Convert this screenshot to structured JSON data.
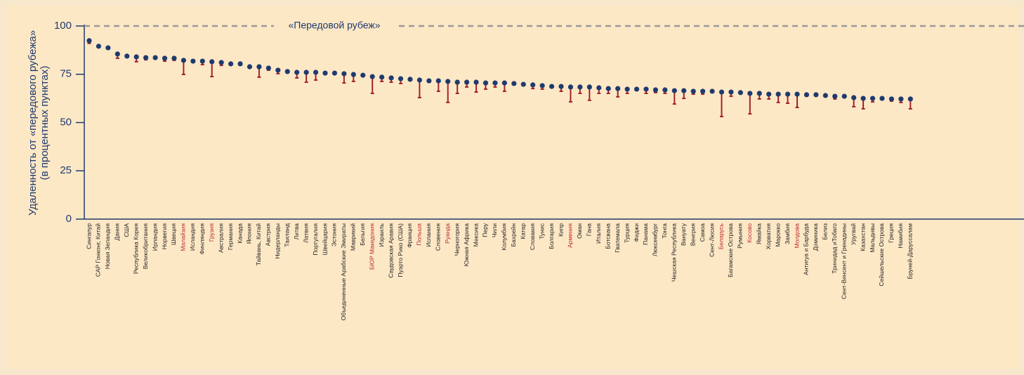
{
  "chart_data": {
    "type": "dot_range",
    "ylabel": [
      "Удаленность от «передового рубежа»",
      "(в процентных пунктах)"
    ],
    "annotation": "«Передовой рубеж»",
    "annotation_value": 100,
    "ylim": [
      0,
      100
    ],
    "yticks": [
      0,
      25,
      50,
      75,
      100
    ],
    "categories": [
      "Сингапур",
      "САР Гонконг, Китай",
      "Новая Зеландия",
      "Дания",
      "США",
      "Республика Корея",
      "Великобритания",
      "Ирландия",
      "Норвегия",
      "Швеция",
      "Малайзия",
      "Исландия",
      "Финляндия",
      "Грузия",
      "Австралия",
      "Германия",
      "Канада",
      "Япония",
      "Тайвань, Китай",
      "Австрия",
      "Нидерланды",
      "Таиланд",
      "Литва",
      "Латвия",
      "Португалия",
      "Швейцария",
      "Эстония",
      "Объединенные Арабские Эмираты",
      "Маврикий",
      "Бельгия",
      "БЮР Македония",
      "Израиль",
      "Саудовская Аравия",
      "Пуэрто Рико (США)",
      "Франция",
      "Польша",
      "Испания",
      "Словения",
      "Руанда",
      "Черногория",
      "Южная Африка",
      "Мексика",
      "Перу",
      "Чили",
      "Колумбия",
      "Бахрейн",
      "Катар",
      "Словакия",
      "Тунис",
      "Болгария",
      "Кипр",
      "Армения",
      "Оман",
      "Гана",
      "Италия",
      "Ботсвана",
      "Гватемала",
      "Турция",
      "Фиджи",
      "Панама",
      "Люксембург",
      "Тонга",
      "Чешская Республика",
      "Вануату",
      "Венгрия",
      "Самоа",
      "Сент-Люсия",
      "Беларусь",
      "Багамские Острова",
      "Румыния",
      "Косово",
      "Ямайка",
      "Хорватия",
      "Марокко",
      "Замбия",
      "Молдова",
      "Антигуа и Барбуда",
      "Доминика",
      "Белиз",
      "Тринидад иТобаго",
      "Сент-Винсент и Гренадины",
      "Уругвай",
      "Казахстан",
      "Мальдивы",
      "Сейшельские Острова",
      "Греция",
      "Намибия",
      "Бруней-Даруссалам"
    ],
    "highlight": {
      "color": "#b8282e",
      "categories": [
        10,
        13,
        30,
        35,
        38,
        51,
        67,
        70,
        75
      ]
    },
    "series": [
      {
        "color": "#1f3a6e",
        "values": [
          92.4,
          89.5,
          88.7,
          85.5,
          84.4,
          84.0,
          83.6,
          83.6,
          83.3,
          83.3,
          82.2,
          81.8,
          81.8,
          81.5,
          81.1,
          80.4,
          80.4,
          78.9,
          78.9,
          78.2,
          77.1,
          76.4,
          76.0,
          76.0,
          76.0,
          75.6,
          75.6,
          75.3,
          74.9,
          74.5,
          73.8,
          73.5,
          73.1,
          72.7,
          72.4,
          72.0,
          71.6,
          71.6,
          71.3,
          70.9,
          70.9,
          70.9,
          70.5,
          70.5,
          70.5,
          70.2,
          69.8,
          69.5,
          69.1,
          68.7,
          68.7,
          68.4,
          68.4,
          68.4,
          68.0,
          67.6,
          67.6,
          67.3,
          67.3,
          67.3,
          66.9,
          66.9,
          66.5,
          66.5,
          66.2,
          66.2,
          66.2,
          65.8,
          65.8,
          65.5,
          65.1,
          65.1,
          64.7,
          64.7,
          64.7,
          64.7,
          64.4,
          64.4,
          64.0,
          63.6,
          63.6,
          62.9,
          62.5,
          62.5,
          62.5,
          62.2,
          62.2,
          62.2
        ]
      },
      {
        "color": "#a3222b",
        "values": [
          91.0,
          89.5,
          88.7,
          83.3,
          84.4,
          81.5,
          82.5,
          83.6,
          81.8,
          82.2,
          74.9,
          81.8,
          80.0,
          73.8,
          79.6,
          80.4,
          80.4,
          78.9,
          73.5,
          77.1,
          75.3,
          76.4,
          73.1,
          70.9,
          72.0,
          75.6,
          75.6,
          70.5,
          71.3,
          74.5,
          65.1,
          71.3,
          70.9,
          70.2,
          72.4,
          62.9,
          71.6,
          66.2,
          60.4,
          65.1,
          68.4,
          65.8,
          67.3,
          68.4,
          66.2,
          70.2,
          69.8,
          67.6,
          67.3,
          68.7,
          66.2,
          60.7,
          65.1,
          61.5,
          65.1,
          65.1,
          63.3,
          65.1,
          67.3,
          65.1,
          65.5,
          65.1,
          59.6,
          62.5,
          64.7,
          64.7,
          66.2,
          53.1,
          63.6,
          65.5,
          54.5,
          62.2,
          62.2,
          60.4,
          60.0,
          57.8,
          64.4,
          64.4,
          64.0,
          62.2,
          63.6,
          58.2,
          57.1,
          60.7,
          62.5,
          61.1,
          60.4,
          57.1
        ]
      }
    ]
  }
}
